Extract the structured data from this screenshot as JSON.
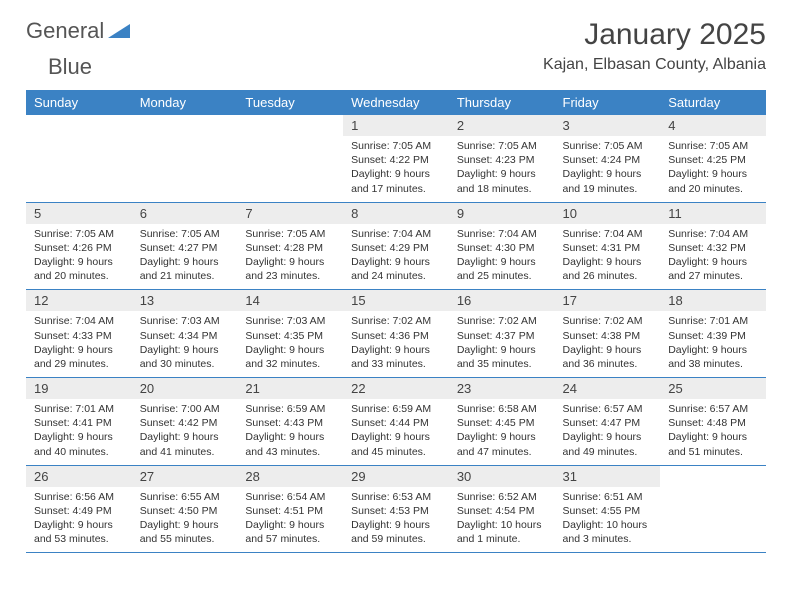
{
  "brand": {
    "word1": "General",
    "word2": "Blue",
    "logo_color": "#3b82c4"
  },
  "title": "January 2025",
  "location": "Kajan, Elbasan County, Albania",
  "colors": {
    "header_bg": "#3b82c4",
    "header_text": "#ffffff",
    "daynum_bg": "#ededed",
    "rule": "#3b82c4"
  },
  "day_headers": [
    "Sunday",
    "Monday",
    "Tuesday",
    "Wednesday",
    "Thursday",
    "Friday",
    "Saturday"
  ],
  "weeks": [
    [
      {
        "n": "",
        "sr": "",
        "ss": "",
        "dl1": "",
        "dl2": "",
        "empty": true
      },
      {
        "n": "",
        "sr": "",
        "ss": "",
        "dl1": "",
        "dl2": "",
        "empty": true
      },
      {
        "n": "",
        "sr": "",
        "ss": "",
        "dl1": "",
        "dl2": "",
        "empty": true
      },
      {
        "n": "1",
        "sr": "Sunrise: 7:05 AM",
        "ss": "Sunset: 4:22 PM",
        "dl1": "Daylight: 9 hours",
        "dl2": "and 17 minutes."
      },
      {
        "n": "2",
        "sr": "Sunrise: 7:05 AM",
        "ss": "Sunset: 4:23 PM",
        "dl1": "Daylight: 9 hours",
        "dl2": "and 18 minutes."
      },
      {
        "n": "3",
        "sr": "Sunrise: 7:05 AM",
        "ss": "Sunset: 4:24 PM",
        "dl1": "Daylight: 9 hours",
        "dl2": "and 19 minutes."
      },
      {
        "n": "4",
        "sr": "Sunrise: 7:05 AM",
        "ss": "Sunset: 4:25 PM",
        "dl1": "Daylight: 9 hours",
        "dl2": "and 20 minutes."
      }
    ],
    [
      {
        "n": "5",
        "sr": "Sunrise: 7:05 AM",
        "ss": "Sunset: 4:26 PM",
        "dl1": "Daylight: 9 hours",
        "dl2": "and 20 minutes."
      },
      {
        "n": "6",
        "sr": "Sunrise: 7:05 AM",
        "ss": "Sunset: 4:27 PM",
        "dl1": "Daylight: 9 hours",
        "dl2": "and 21 minutes."
      },
      {
        "n": "7",
        "sr": "Sunrise: 7:05 AM",
        "ss": "Sunset: 4:28 PM",
        "dl1": "Daylight: 9 hours",
        "dl2": "and 23 minutes."
      },
      {
        "n": "8",
        "sr": "Sunrise: 7:04 AM",
        "ss": "Sunset: 4:29 PM",
        "dl1": "Daylight: 9 hours",
        "dl2": "and 24 minutes."
      },
      {
        "n": "9",
        "sr": "Sunrise: 7:04 AM",
        "ss": "Sunset: 4:30 PM",
        "dl1": "Daylight: 9 hours",
        "dl2": "and 25 minutes."
      },
      {
        "n": "10",
        "sr": "Sunrise: 7:04 AM",
        "ss": "Sunset: 4:31 PM",
        "dl1": "Daylight: 9 hours",
        "dl2": "and 26 minutes."
      },
      {
        "n": "11",
        "sr": "Sunrise: 7:04 AM",
        "ss": "Sunset: 4:32 PM",
        "dl1": "Daylight: 9 hours",
        "dl2": "and 27 minutes."
      }
    ],
    [
      {
        "n": "12",
        "sr": "Sunrise: 7:04 AM",
        "ss": "Sunset: 4:33 PM",
        "dl1": "Daylight: 9 hours",
        "dl2": "and 29 minutes."
      },
      {
        "n": "13",
        "sr": "Sunrise: 7:03 AM",
        "ss": "Sunset: 4:34 PM",
        "dl1": "Daylight: 9 hours",
        "dl2": "and 30 minutes."
      },
      {
        "n": "14",
        "sr": "Sunrise: 7:03 AM",
        "ss": "Sunset: 4:35 PM",
        "dl1": "Daylight: 9 hours",
        "dl2": "and 32 minutes."
      },
      {
        "n": "15",
        "sr": "Sunrise: 7:02 AM",
        "ss": "Sunset: 4:36 PM",
        "dl1": "Daylight: 9 hours",
        "dl2": "and 33 minutes."
      },
      {
        "n": "16",
        "sr": "Sunrise: 7:02 AM",
        "ss": "Sunset: 4:37 PM",
        "dl1": "Daylight: 9 hours",
        "dl2": "and 35 minutes."
      },
      {
        "n": "17",
        "sr": "Sunrise: 7:02 AM",
        "ss": "Sunset: 4:38 PM",
        "dl1": "Daylight: 9 hours",
        "dl2": "and 36 minutes."
      },
      {
        "n": "18",
        "sr": "Sunrise: 7:01 AM",
        "ss": "Sunset: 4:39 PM",
        "dl1": "Daylight: 9 hours",
        "dl2": "and 38 minutes."
      }
    ],
    [
      {
        "n": "19",
        "sr": "Sunrise: 7:01 AM",
        "ss": "Sunset: 4:41 PM",
        "dl1": "Daylight: 9 hours",
        "dl2": "and 40 minutes."
      },
      {
        "n": "20",
        "sr": "Sunrise: 7:00 AM",
        "ss": "Sunset: 4:42 PM",
        "dl1": "Daylight: 9 hours",
        "dl2": "and 41 minutes."
      },
      {
        "n": "21",
        "sr": "Sunrise: 6:59 AM",
        "ss": "Sunset: 4:43 PM",
        "dl1": "Daylight: 9 hours",
        "dl2": "and 43 minutes."
      },
      {
        "n": "22",
        "sr": "Sunrise: 6:59 AM",
        "ss": "Sunset: 4:44 PM",
        "dl1": "Daylight: 9 hours",
        "dl2": "and 45 minutes."
      },
      {
        "n": "23",
        "sr": "Sunrise: 6:58 AM",
        "ss": "Sunset: 4:45 PM",
        "dl1": "Daylight: 9 hours",
        "dl2": "and 47 minutes."
      },
      {
        "n": "24",
        "sr": "Sunrise: 6:57 AM",
        "ss": "Sunset: 4:47 PM",
        "dl1": "Daylight: 9 hours",
        "dl2": "and 49 minutes."
      },
      {
        "n": "25",
        "sr": "Sunrise: 6:57 AM",
        "ss": "Sunset: 4:48 PM",
        "dl1": "Daylight: 9 hours",
        "dl2": "and 51 minutes."
      }
    ],
    [
      {
        "n": "26",
        "sr": "Sunrise: 6:56 AM",
        "ss": "Sunset: 4:49 PM",
        "dl1": "Daylight: 9 hours",
        "dl2": "and 53 minutes."
      },
      {
        "n": "27",
        "sr": "Sunrise: 6:55 AM",
        "ss": "Sunset: 4:50 PM",
        "dl1": "Daylight: 9 hours",
        "dl2": "and 55 minutes."
      },
      {
        "n": "28",
        "sr": "Sunrise: 6:54 AM",
        "ss": "Sunset: 4:51 PM",
        "dl1": "Daylight: 9 hours",
        "dl2": "and 57 minutes."
      },
      {
        "n": "29",
        "sr": "Sunrise: 6:53 AM",
        "ss": "Sunset: 4:53 PM",
        "dl1": "Daylight: 9 hours",
        "dl2": "and 59 minutes."
      },
      {
        "n": "30",
        "sr": "Sunrise: 6:52 AM",
        "ss": "Sunset: 4:54 PM",
        "dl1": "Daylight: 10 hours",
        "dl2": "and 1 minute."
      },
      {
        "n": "31",
        "sr": "Sunrise: 6:51 AM",
        "ss": "Sunset: 4:55 PM",
        "dl1": "Daylight: 10 hours",
        "dl2": "and 3 minutes."
      },
      {
        "n": "",
        "sr": "",
        "ss": "",
        "dl1": "",
        "dl2": "",
        "empty": true
      }
    ]
  ]
}
